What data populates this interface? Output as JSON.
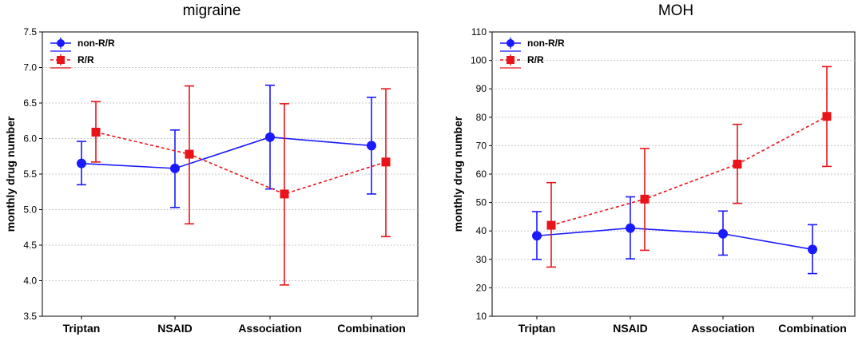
{
  "chart_data": [
    {
      "type": "line",
      "title": "migraine",
      "xlabel": "",
      "ylabel": "monthly drug number",
      "categories": [
        "Triptan",
        "NSAID",
        "Association",
        "Combination"
      ],
      "ylim": [
        3.5,
        7.5
      ],
      "yticks": [
        "3.5",
        "4.0",
        "4.5",
        "5.0",
        "5.5",
        "6.0",
        "6.5",
        "7.0",
        "7.5"
      ],
      "grid": true,
      "legend_position": "top-left",
      "series": [
        {
          "name": "non-R/R",
          "color": "#1a1aff",
          "marker": "circle",
          "line": "solid",
          "values": [
            5.65,
            5.58,
            6.02,
            5.9
          ],
          "err_low": [
            5.35,
            5.03,
            5.29,
            5.22
          ],
          "err_high": [
            5.96,
            6.12,
            6.75,
            6.58
          ]
        },
        {
          "name": "R/R",
          "color": "#e8141a",
          "marker": "square",
          "line": "dashed",
          "values": [
            6.09,
            5.78,
            5.22,
            5.67
          ],
          "err_low": [
            5.67,
            4.8,
            3.94,
            4.62
          ],
          "err_high": [
            6.52,
            6.74,
            6.49,
            6.7
          ]
        }
      ]
    },
    {
      "type": "line",
      "title": "MOH",
      "xlabel": "",
      "ylabel": "monthly drug number",
      "categories": [
        "Triptan",
        "NSAID",
        "Association",
        "Combination"
      ],
      "ylim": [
        10,
        110
      ],
      "yticks": [
        "10",
        "20",
        "30",
        "40",
        "50",
        "60",
        "70",
        "80",
        "90",
        "100",
        "110"
      ],
      "grid": true,
      "legend_position": "top-left",
      "series": [
        {
          "name": "non-R/R",
          "color": "#1a1aff",
          "marker": "circle",
          "line": "solid",
          "values": [
            38.3,
            41.0,
            39.0,
            33.5
          ],
          "err_low": [
            30.0,
            30.2,
            31.5,
            25.0
          ],
          "err_high": [
            46.8,
            52.0,
            47.0,
            42.2
          ]
        },
        {
          "name": "R/R",
          "color": "#e8141a",
          "marker": "square",
          "line": "dashed",
          "values": [
            42.0,
            51.2,
            63.5,
            80.3
          ],
          "err_low": [
            27.3,
            33.2,
            49.7,
            62.7
          ],
          "err_high": [
            57.0,
            69.0,
            77.5,
            97.8
          ]
        }
      ]
    }
  ]
}
